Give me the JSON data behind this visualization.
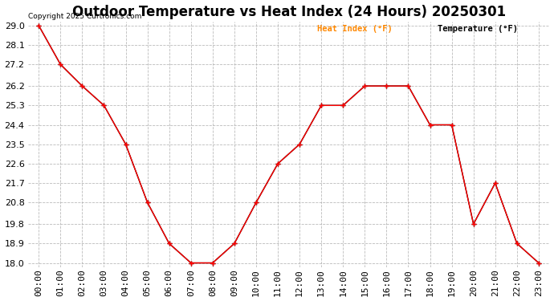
{
  "title": "Outdoor Temperature vs Heat Index (24 Hours) 20250301",
  "copyright": "Copyright 2025 Curtronics.com",
  "legend_heat": "Heat Index (°F)",
  "legend_temp": "Temperature (°F)",
  "hours": [
    "00:00",
    "01:00",
    "02:00",
    "03:00",
    "04:00",
    "05:00",
    "06:00",
    "07:00",
    "08:00",
    "09:00",
    "10:00",
    "11:00",
    "12:00",
    "13:00",
    "14:00",
    "15:00",
    "16:00",
    "17:00",
    "18:00",
    "19:00",
    "20:00",
    "21:00",
    "22:00",
    "23:00"
  ],
  "temperature": [
    29.0,
    27.2,
    26.2,
    25.3,
    23.5,
    20.8,
    18.9,
    18.0,
    18.0,
    18.9,
    20.8,
    22.6,
    23.5,
    25.3,
    25.3,
    26.2,
    26.2,
    26.2,
    24.4,
    24.4,
    19.8,
    21.7,
    18.9,
    18.0
  ],
  "heat_index": [
    29.0,
    27.2,
    26.2,
    25.3,
    23.5,
    20.8,
    18.9,
    18.0,
    18.0,
    18.9,
    20.8,
    22.6,
    23.5,
    25.3,
    25.3,
    26.2,
    26.2,
    26.2,
    24.4,
    24.4,
    19.8,
    21.7,
    18.9,
    18.0
  ],
  "ylim_min": 17.8,
  "ylim_max": 29.2,
  "yticks": [
    18.0,
    18.9,
    19.8,
    20.8,
    21.7,
    22.6,
    23.5,
    24.4,
    25.3,
    26.2,
    27.2,
    28.1,
    29.0
  ],
  "temp_color": "#000000",
  "heat_color": "#ff0000",
  "bg_color": "#ffffff",
  "grid_color": "#aaaaaa",
  "title_fontsize": 12,
  "tick_fontsize": 8,
  "legend_heat_color": "#ff8800",
  "legend_temp_color": "#000000"
}
